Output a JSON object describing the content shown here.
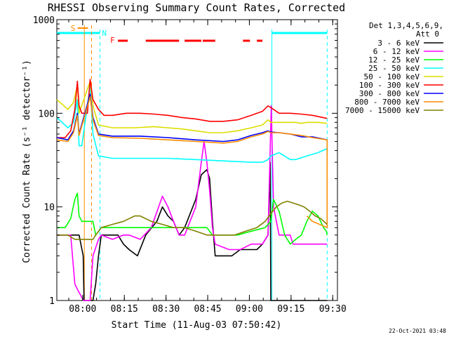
{
  "chart_data": {
    "type": "line",
    "title": "RHESSI Observing Summary Count Rates, Corrected",
    "xlabel": "Start Time (11-Aug-03 07:50:42)",
    "ylabel": "Corrected Count Rate (s⁻¹ detector⁻¹)",
    "yscale": "log",
    "ylim": [
      1,
      1000
    ],
    "xlim_minutes": [
      0,
      101
    ],
    "x_ticks": [
      {
        "label": "08:00",
        "t": 9.3
      },
      {
        "label": "08:15",
        "t": 24.3
      },
      {
        "label": "08:30",
        "t": 39.3
      },
      {
        "label": "08:45",
        "t": 54.3
      },
      {
        "label": "09:00",
        "t": 69.3
      },
      {
        "label": "09:15",
        "t": 84.3
      },
      {
        "label": "09:30",
        "t": 99.3
      }
    ],
    "y_ticks": [
      {
        "label": "1",
        "v": 1
      },
      {
        "label": "10",
        "v": 10
      },
      {
        "label": "100",
        "v": 100
      },
      {
        "label": "1000",
        "v": 1000
      }
    ],
    "legend": {
      "header_line1": "Det 1,3,4,5,6,9,",
      "header_line2": "Att 0",
      "position": "right"
    },
    "flags": {
      "saa_label": "S",
      "night_label": "N",
      "flare_label": "F",
      "saa_color": "#ff8c00",
      "night_color": "#00ffff",
      "flare_color": "#ff0000",
      "saa_interval": [
        7.5,
        11.2
      ],
      "night_intervals": [
        [
          0,
          15.5
        ],
        [
          77.4,
          97.3
        ]
      ],
      "flare_segments": [
        [
          22,
          25.5
        ],
        [
          32,
          44
        ],
        [
          46,
          52
        ],
        [
          52.5,
          57
        ],
        [
          67,
          69.5
        ],
        [
          72,
          74
        ]
      ],
      "saa_lines": [
        {
          "t": 9.9,
          "dashed": false
        },
        {
          "t": 12.5,
          "dashed": true
        }
      ],
      "night_lines": [
        {
          "t": 15.5,
          "dashed": true
        },
        {
          "t": 77.4,
          "dashed": false
        },
        {
          "t": 97.3,
          "dashed": true
        }
      ]
    },
    "series": [
      {
        "name": "3 - 6 keV",
        "color": "#000000",
        "points": [
          [
            0,
            5
          ],
          [
            8,
            5
          ],
          [
            9.5,
            3
          ],
          [
            9.8,
            1
          ],
          [
            13,
            1
          ],
          [
            14,
            1.5
          ],
          [
            15,
            3
          ],
          [
            16,
            5
          ],
          [
            20,
            5
          ],
          [
            22,
            5
          ],
          [
            24,
            4
          ],
          [
            26,
            3.5
          ],
          [
            29,
            3
          ],
          [
            32,
            5
          ],
          [
            36,
            7
          ],
          [
            38,
            10
          ],
          [
            40,
            8
          ],
          [
            42,
            7
          ],
          [
            44,
            5
          ],
          [
            46,
            6
          ],
          [
            50,
            12
          ],
          [
            52,
            22
          ],
          [
            54,
            25
          ],
          [
            55,
            20
          ],
          [
            56,
            7
          ],
          [
            57,
            3
          ],
          [
            60,
            3
          ],
          [
            63,
            3
          ],
          [
            66,
            3.5
          ],
          [
            70,
            3.5
          ],
          [
            72,
            3.5
          ],
          [
            74,
            4
          ],
          [
            76,
            5
          ],
          [
            76.8,
            30
          ],
          [
            77,
            1
          ],
          [
            97.3,
            1
          ]
        ]
      },
      {
        "name": "6 - 12 keV",
        "color": "#ff00ff",
        "points": [
          [
            0,
            5
          ],
          [
            5,
            5
          ],
          [
            6.5,
            1.5
          ],
          [
            7.5,
            1.3
          ],
          [
            9.6,
            1
          ],
          [
            12,
            1
          ],
          [
            13,
            3
          ],
          [
            15,
            4.5
          ],
          [
            16,
            5
          ],
          [
            20,
            4.5
          ],
          [
            24,
            5
          ],
          [
            26,
            5
          ],
          [
            30,
            4.5
          ],
          [
            34,
            6
          ],
          [
            38,
            13
          ],
          [
            40,
            10
          ],
          [
            42,
            7
          ],
          [
            44,
            5
          ],
          [
            46,
            5
          ],
          [
            50,
            10
          ],
          [
            52,
            30
          ],
          [
            53,
            50
          ],
          [
            54,
            30
          ],
          [
            55,
            15
          ],
          [
            56,
            6
          ],
          [
            57,
            4
          ],
          [
            62,
            3.5
          ],
          [
            66,
            3.5
          ],
          [
            70,
            4
          ],
          [
            72,
            4
          ],
          [
            74,
            4
          ],
          [
            76,
            5
          ],
          [
            77.2,
            120
          ],
          [
            77.5,
            45
          ],
          [
            78,
            10
          ],
          [
            80,
            5
          ],
          [
            82,
            5
          ],
          [
            84,
            5
          ],
          [
            85,
            4
          ],
          [
            97.3,
            4
          ]
        ]
      },
      {
        "name": "12 - 25 keV",
        "color": "#00ff00",
        "points": [
          [
            0,
            6
          ],
          [
            3,
            6
          ],
          [
            5,
            7.5
          ],
          [
            6.5,
            12
          ],
          [
            7.4,
            14
          ],
          [
            8,
            8
          ],
          [
            9,
            7
          ],
          [
            13,
            7
          ],
          [
            14,
            5
          ],
          [
            16,
            6
          ],
          [
            30,
            6
          ],
          [
            50,
            6
          ],
          [
            54,
            6
          ],
          [
            56,
            5
          ],
          [
            60,
            5
          ],
          [
            65,
            5
          ],
          [
            70,
            5.5
          ],
          [
            75,
            6
          ],
          [
            77,
            7
          ],
          [
            78,
            12
          ],
          [
            80,
            9
          ],
          [
            82,
            5
          ],
          [
            84,
            4
          ],
          [
            86,
            4.5
          ],
          [
            88,
            5
          ],
          [
            90,
            7
          ],
          [
            92,
            9
          ],
          [
            94,
            8
          ],
          [
            96,
            6
          ],
          [
            97,
            5.5
          ],
          [
            97.3,
            5
          ]
        ]
      },
      {
        "name": "25 - 50 keV",
        "color": "#00ffff",
        "points": [
          [
            0,
            90
          ],
          [
            4,
            70
          ],
          [
            6,
            80
          ],
          [
            7.4,
            140
          ],
          [
            8,
            45
          ],
          [
            9,
            45
          ],
          [
            12,
            200
          ],
          [
            13,
            60
          ],
          [
            15,
            35
          ],
          [
            20,
            33
          ],
          [
            30,
            33
          ],
          [
            40,
            33
          ],
          [
            50,
            32
          ],
          [
            60,
            31
          ],
          [
            70,
            30
          ],
          [
            74,
            30
          ],
          [
            76,
            32
          ],
          [
            77,
            35
          ],
          [
            80,
            38
          ],
          [
            84,
            32
          ],
          [
            86,
            32
          ],
          [
            90,
            35
          ],
          [
            94,
            38
          ],
          [
            97.3,
            42
          ]
        ]
      },
      {
        "name": "50 - 100 keV",
        "color": "#dddd00",
        "points": [
          [
            0,
            140
          ],
          [
            4,
            110
          ],
          [
            6,
            130
          ],
          [
            7.4,
            200
          ],
          [
            8,
            100
          ],
          [
            12,
            220
          ],
          [
            13,
            120
          ],
          [
            15,
            75
          ],
          [
            20,
            70
          ],
          [
            28,
            70
          ],
          [
            35,
            72
          ],
          [
            40,
            70
          ],
          [
            45,
            68
          ],
          [
            50,
            65
          ],
          [
            55,
            62
          ],
          [
            60,
            62
          ],
          [
            65,
            65
          ],
          [
            70,
            70
          ],
          [
            74,
            75
          ],
          [
            76,
            85
          ],
          [
            77,
            80
          ],
          [
            80,
            80
          ],
          [
            84,
            80
          ],
          [
            86,
            80
          ],
          [
            88,
            78
          ],
          [
            90,
            80
          ],
          [
            94,
            80
          ],
          [
            97.3,
            78
          ]
        ]
      },
      {
        "name": "100 - 300 keV",
        "color": "#ff0000",
        "points": [
          [
            0,
            55
          ],
          [
            3,
            55
          ],
          [
            5,
            65
          ],
          [
            6.5,
            110
          ],
          [
            7.4,
            220
          ],
          [
            8,
            120
          ],
          [
            9,
            100
          ],
          [
            11,
            100
          ],
          [
            12,
            230
          ],
          [
            13,
            140
          ],
          [
            15,
            110
          ],
          [
            17,
            95
          ],
          [
            20,
            95
          ],
          [
            25,
            100
          ],
          [
            30,
            100
          ],
          [
            35,
            98
          ],
          [
            40,
            95
          ],
          [
            45,
            90
          ],
          [
            50,
            87
          ],
          [
            55,
            82
          ],
          [
            60,
            82
          ],
          [
            65,
            85
          ],
          [
            70,
            95
          ],
          [
            74,
            105
          ],
          [
            76,
            120
          ],
          [
            77,
            115
          ],
          [
            78,
            110
          ],
          [
            80,
            100
          ],
          [
            84,
            100
          ],
          [
            88,
            98
          ],
          [
            92,
            95
          ],
          [
            97.3,
            88
          ]
        ]
      },
      {
        "name": "300 - 800 keV",
        "color": "#0000ff",
        "points": [
          [
            0,
            55
          ],
          [
            4,
            52
          ],
          [
            6,
            65
          ],
          [
            7.4,
            100
          ],
          [
            8,
            60
          ],
          [
            12,
            160
          ],
          [
            13,
            90
          ],
          [
            15,
            60
          ],
          [
            20,
            57
          ],
          [
            30,
            57
          ],
          [
            40,
            55
          ],
          [
            50,
            52
          ],
          [
            60,
            50
          ],
          [
            65,
            52
          ],
          [
            70,
            58
          ],
          [
            74,
            62
          ],
          [
            76,
            65
          ],
          [
            77,
            63
          ],
          [
            80,
            62
          ],
          [
            84,
            60
          ],
          [
            88,
            56
          ],
          [
            92,
            56
          ],
          [
            97.3,
            52
          ]
        ]
      },
      {
        "name": "800 - 7000 keV",
        "color": "#ff8c00",
        "points": [
          [
            0,
            52
          ],
          [
            4,
            50
          ],
          [
            6,
            62
          ],
          [
            7.4,
            95
          ],
          [
            8,
            58
          ],
          [
            12,
            150
          ],
          [
            13,
            85
          ],
          [
            15,
            58
          ],
          [
            20,
            55
          ],
          [
            30,
            54
          ],
          [
            40,
            52
          ],
          [
            50,
            50
          ],
          [
            60,
            48
          ],
          [
            65,
            50
          ],
          [
            70,
            56
          ],
          [
            74,
            60
          ],
          [
            76,
            64
          ],
          [
            77,
            62
          ],
          [
            80,
            62
          ],
          [
            84,
            60
          ],
          [
            88,
            58
          ],
          [
            92,
            55
          ],
          [
            97.3,
            52
          ],
          [
            97.3,
            6
          ],
          [
            92,
            7
          ],
          [
            90,
            8
          ]
        ]
      },
      {
        "name": "7000 - 15000 keV",
        "color": "#808000",
        "points": [
          [
            0,
            5
          ],
          [
            3,
            5
          ],
          [
            4,
            5
          ],
          [
            6.5,
            4.5
          ],
          [
            9.6,
            4.5
          ],
          [
            13,
            4.5
          ],
          [
            14,
            5
          ],
          [
            16,
            6
          ],
          [
            20,
            6.5
          ],
          [
            24,
            7
          ],
          [
            28,
            8
          ],
          [
            30,
            8
          ],
          [
            34,
            7
          ],
          [
            38,
            6.5
          ],
          [
            42,
            6
          ],
          [
            46,
            6
          ],
          [
            50,
            5.5
          ],
          [
            54,
            5
          ],
          [
            56,
            5
          ],
          [
            60,
            5
          ],
          [
            64,
            5
          ],
          [
            68,
            5.5
          ],
          [
            72,
            6
          ],
          [
            75,
            7
          ],
          [
            77,
            8.5
          ],
          [
            79,
            10
          ],
          [
            81,
            11
          ],
          [
            83,
            11.5
          ],
          [
            85,
            11
          ],
          [
            87,
            10.5
          ],
          [
            89,
            10
          ],
          [
            91,
            9
          ],
          [
            93,
            8
          ],
          [
            95,
            7.5
          ],
          [
            97.3,
            6.5
          ]
        ]
      }
    ]
  },
  "footer": {
    "date": "22-Oct-2021 03:48"
  }
}
